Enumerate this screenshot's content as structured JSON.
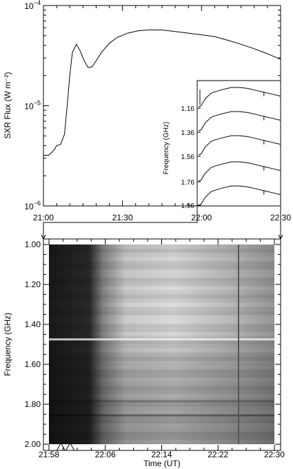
{
  "chart_data": [
    {
      "type": "line",
      "panel": "sxr",
      "ylabel": "SXR Flux (W m⁻²)",
      "xlabel": "",
      "scale_y": "log",
      "ylim": [
        1e-06,
        0.0001
      ],
      "xlim_min": [
        0,
        90
      ],
      "x_ticks": [
        "21:00",
        "21:30",
        "22:00",
        "22:30"
      ],
      "y_tick_labels": [
        {
          "base": "10",
          "exp": "−4",
          "value": 0.0001
        },
        {
          "base": "10",
          "exp": "−5",
          "value": 1e-05
        },
        {
          "base": "10",
          "exp": "−6",
          "value": 1e-06
        }
      ],
      "series": [
        {
          "x": [
            0,
            2,
            4,
            5,
            6.5,
            8,
            9,
            10,
            11,
            12.5,
            14,
            15.5,
            17,
            18.5,
            20,
            22,
            25,
            28,
            32,
            36,
            40,
            45,
            50,
            55,
            60,
            65,
            70,
            75,
            80,
            85,
            90
          ],
          "y": [
            3.2e-06,
            3.2e-06,
            3.6e-06,
            4e-06,
            4.1e-06,
            5.2e-06,
            1e-05,
            2e-05,
            3.4e-05,
            4.1e-05,
            3.5e-05,
            2.8e-05,
            2.4e-05,
            2.45e-05,
            2.8e-05,
            3.4e-05,
            4.2e-05,
            4.8e-05,
            5.3e-05,
            5.6e-05,
            5.7e-05,
            5.7e-05,
            5.5e-05,
            5.3e-05,
            5.1e-05,
            4.9e-05,
            4.5e-05,
            4.1e-05,
            3.7e-05,
            3.3e-05,
            2.9e-05
          ]
        }
      ]
    },
    {
      "type": "line",
      "panel": "inset-frequency-profiles",
      "ylabel": "Frequency (GHz)",
      "y_ticks": [
        "1.16",
        "1.36",
        "1.56",
        "1.76",
        "1.96"
      ],
      "profile_x": [
        0,
        3,
        8,
        15,
        20,
        30,
        40,
        50,
        60,
        70,
        80,
        90,
        100
      ],
      "profile_y": [
        0.0,
        0.05,
        0.4,
        0.7,
        0.78,
        0.9,
        1.0,
        1.0,
        0.95,
        0.85,
        0.75,
        0.65,
        0.55
      ]
    },
    {
      "type": "heatmap",
      "panel": "dynamic-spectrum",
      "ylabel": "Frequency (GHz)",
      "xlabel": "Time (UT)",
      "x_ticks": [
        "21:58",
        "22:06",
        "22:14",
        "22:22",
        "22:30"
      ],
      "y_ticks": [
        "1.00",
        "1.20",
        "1.40",
        "1.60",
        "1.80",
        "2.00"
      ],
      "xlim_min": [
        0,
        32
      ],
      "ylim": [
        1.0,
        2.0
      ],
      "markers_min": [
        1.7,
        3.0
      ]
    }
  ]
}
